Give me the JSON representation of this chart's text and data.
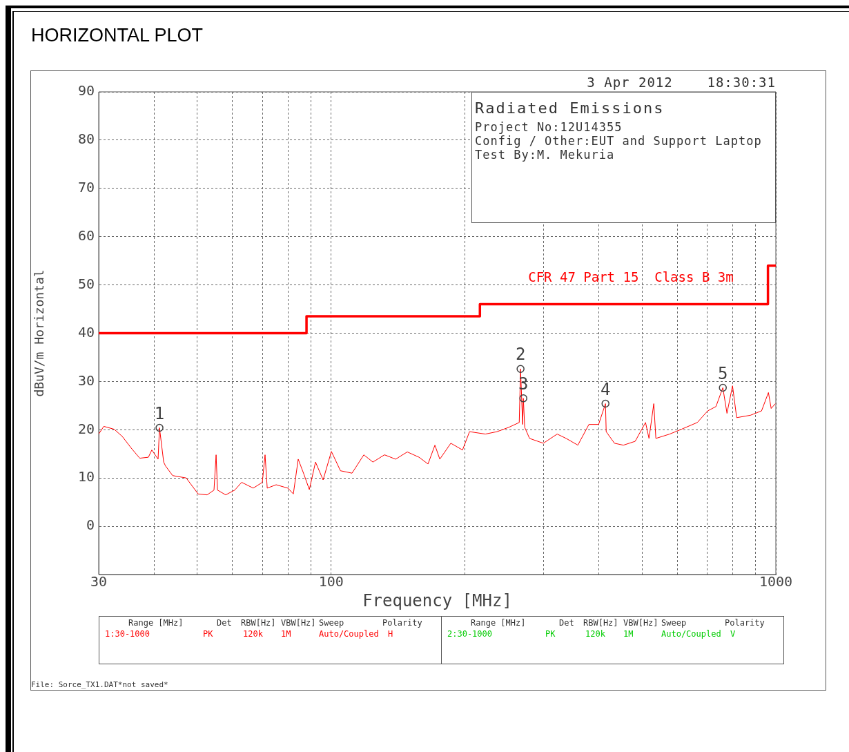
{
  "chart_data": {
    "type": "line",
    "title": "HORIZONTAL PLOT",
    "xlabel": "Frequency [MHz]",
    "ylabel": "dBuV/m Horizontal",
    "log": "x",
    "grid": true,
    "legend": false,
    "xlim": [
      30,
      1000
    ],
    "xticks": [
      30,
      {
        "value": 40,
        "label": null
      },
      {
        "value": 50,
        "label": null
      },
      {
        "value": 60,
        "label": null
      },
      {
        "value": 70,
        "label": null
      },
      {
        "value": 80,
        "label": null
      },
      {
        "value": 90,
        "label": null
      },
      100,
      {
        "value": 200,
        "label": null
      },
      {
        "value": 300,
        "label": null
      },
      {
        "value": 400,
        "label": null
      },
      {
        "value": 500,
        "label": null
      },
      {
        "value": 600,
        "label": null
      },
      {
        "value": 700,
        "label": null
      },
      {
        "value": 800,
        "label": null
      },
      {
        "value": 900,
        "label": null
      },
      1000
    ],
    "ylim": [
      -10,
      90
    ],
    "yticks": [
      0,
      10,
      20,
      30,
      40,
      50,
      60,
      70,
      80,
      90
    ],
    "series": [
      {
        "color": "#ff0000",
        "x": [
          30.0,
          30.8,
          32.5,
          33.9,
          35.5,
          37.1,
          38.8,
          39.5,
          40.8,
          41.1,
          42.0,
          42.4,
          44.0,
          47.2,
          50.2,
          52.6,
          54.5,
          55.1,
          55.5,
          57.9,
          60.7,
          62.9,
          66.8,
          70.0,
          71.0,
          71.8,
          75.2,
          79.9,
          82.2,
          84.3,
          86.8,
          89.3,
          92.2,
          95.9,
          100.1,
          104.9,
          111.4,
          118.4,
          124.1,
          131.8,
          139.6,
          148.3,
          157.6,
          165.1,
          171.1,
          175.5,
          185.8,
          197.4,
          204.7,
          222.2,
          236.1,
          250.9,
          264.8,
          266.6,
          269.5,
          270.5,
          272.4,
          279.3,
          300.0,
          322.3,
          337.6,
          358.7,
          379.9,
          399.4,
          413.9,
          415.4,
          433.5,
          454.1,
          482.7,
          509.3,
          518.5,
          531.5,
          537.3,
          577.2,
          613.4,
          665.9,
          702.6,
          733.4,
          760.0,
          776.5,
          799.1,
          816.4,
          876.8,
          928.7,
          962.4,
          976.2,
          997.4
        ],
        "values": [
          19.1,
          20.7,
          20.1,
          18.6,
          16.2,
          14.1,
          14.3,
          15.8,
          13.9,
          20.4,
          13.3,
          12.5,
          10.5,
          10.0,
          6.7,
          6.5,
          7.5,
          14.8,
          7.5,
          6.5,
          7.5,
          9.1,
          7.9,
          9.1,
          14.8,
          7.9,
          8.6,
          7.9,
          6.7,
          13.9,
          10.8,
          7.6,
          13.3,
          9.6,
          15.5,
          11.5,
          11.0,
          14.8,
          13.3,
          14.8,
          13.9,
          15.4,
          14.3,
          12.9,
          16.8,
          13.9,
          17.2,
          15.8,
          19.6,
          19.1,
          19.6,
          20.5,
          21.5,
          32.6,
          21.1,
          26.5,
          20.5,
          18.2,
          17.2,
          19.1,
          18.2,
          16.8,
          21.1,
          21.1,
          25.4,
          19.6,
          17.2,
          16.8,
          17.6,
          21.5,
          18.2,
          25.4,
          18.2,
          19.1,
          20.1,
          21.5,
          23.9,
          24.8,
          28.7,
          23.4,
          29.1,
          22.5,
          23.0,
          23.9,
          27.7,
          24.4,
          25.4
        ]
      },
      {
        "type": "step",
        "name": "CFR 47 Part 15  Class B 3m",
        "color": "#ff0000",
        "x": [
          30,
          88,
          216,
          960,
          1000
        ],
        "values": [
          40,
          43.5,
          46,
          54,
          54
        ]
      },
      {
        "type": "scatter",
        "marker": "circle",
        "color": "#404040",
        "x": [
          41.1,
          266.6,
          270.5,
          413.9,
          760.0
        ],
        "values": [
          20.4,
          32.6,
          26.5,
          25.4,
          28.7
        ]
      }
    ],
    "annotations": [
      "3 Apr 2012    18:30:31",
      "Radiated Emissions",
      "Project No:12U14355",
      "Config / Other:EUT and Support Laptop",
      "Test By:M. Mekuria",
      "Range [MHz]",
      "Det",
      "RBW[Hz]",
      "VBW[Hz]",
      "Sweep",
      "Polarity",
      "1:30-1000",
      "PK",
      "120k",
      "1M",
      "Auto/Coupled",
      "H",
      "Range [MHz]",
      "Det",
      "RBW[Hz]",
      "VBW[Hz]",
      "Sweep",
      "Polarity",
      "2:30-1000",
      "PK",
      "120k",
      "1M",
      "Auto/Coupled",
      "V",
      "File: Sorce_TX1.DAT*not saved*",
      {
        "text": "1",
        "x": 41.1,
        "y": 20.4
      },
      {
        "text": "2",
        "x": 266.6,
        "y": 32.6
      },
      {
        "text": "3",
        "x": 270.5,
        "y": 26.5
      },
      {
        "text": "4",
        "x": 413.9,
        "y": 25.4
      },
      {
        "text": "5",
        "x": 760.0,
        "y": 28.7
      }
    ]
  }
}
